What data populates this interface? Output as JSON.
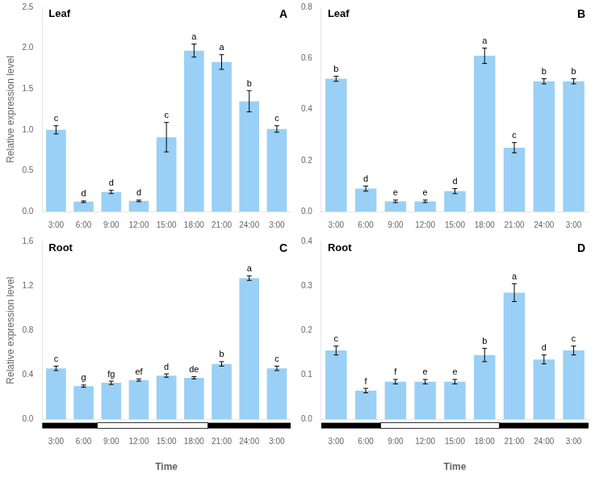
{
  "chart_data": [
    {
      "type": "bar",
      "title": "Leaf",
      "panel_label": "A",
      "categories": [
        "3:00",
        "6:00",
        "9:00",
        "12:00",
        "15:00",
        "18:00",
        "21:00",
        "24:00",
        "3:00"
      ],
      "values": [
        1.0,
        0.12,
        0.24,
        0.13,
        0.91,
        1.97,
        1.83,
        1.35,
        1.01
      ],
      "errors": [
        0.05,
        0.01,
        0.02,
        0.01,
        0.18,
        0.08,
        0.09,
        0.13,
        0.04
      ],
      "annotations": [
        "c",
        "d",
        "d",
        "d",
        "c",
        "a",
        "a",
        "b",
        "c"
      ],
      "ylabel": "Relative expression level",
      "ylim": [
        0,
        2.5
      ],
      "yticks": [
        {
          "value": 0,
          "label": "0.0"
        },
        0.5,
        {
          "value": 1,
          "label": "1.0"
        },
        1.5,
        {
          "value": 2,
          "label": "2.0"
        },
        2.5
      ],
      "grid": false
    },
    {
      "type": "bar",
      "title": "Leaf",
      "panel_label": "B",
      "categories": [
        "3:00",
        "6:00",
        "9:00",
        "12:00",
        "15:00",
        "18:00",
        "21:00",
        "24:00",
        "3:00"
      ],
      "values": [
        0.52,
        0.09,
        0.04,
        0.04,
        0.08,
        0.61,
        0.25,
        0.51,
        0.51
      ],
      "errors": [
        0.01,
        0.01,
        0.005,
        0.005,
        0.01,
        0.03,
        0.02,
        0.01,
        0.01
      ],
      "annotations": [
        "b",
        "d",
        "e",
        "e",
        "d",
        "a",
        "c",
        "b",
        "b"
      ],
      "ylim": [
        0,
        0.8
      ],
      "yticks": [
        {
          "value": 0,
          "label": "0.0"
        },
        0.2,
        0.4,
        0.6,
        0.8
      ],
      "grid": false
    },
    {
      "type": "bar",
      "title": "Root",
      "panel_label": "C",
      "categories": [
        "3:00",
        "6:00",
        "9:00",
        "12:00",
        "15:00",
        "18:00",
        "21:00",
        "24:00",
        "3:00"
      ],
      "values": [
        0.46,
        0.3,
        0.33,
        0.355,
        0.395,
        0.375,
        0.5,
        1.27,
        0.46
      ],
      "errors": [
        0.02,
        0.01,
        0.015,
        0.01,
        0.015,
        0.01,
        0.02,
        0.02,
        0.02
      ],
      "annotations": [
        "c",
        "g",
        "fg",
        "ef",
        "d",
        "de",
        "b",
        "a",
        "c"
      ],
      "ylabel": "Relative expression level",
      "xlabel": "Time",
      "night": [
        true,
        true,
        false,
        false,
        false,
        false,
        true,
        true,
        true
      ],
      "ylim": [
        0,
        1.6
      ],
      "yticks": [
        {
          "value": 0,
          "label": "0.0"
        },
        0.4,
        0.8,
        1.2,
        1.6
      ],
      "grid": false
    },
    {
      "type": "bar",
      "title": "Root",
      "panel_label": "D",
      "categories": [
        "3:00",
        "6:00",
        "9:00",
        "12:00",
        "15:00",
        "18:00",
        "21:00",
        "24:00",
        "3:00"
      ],
      "values": [
        0.155,
        0.065,
        0.085,
        0.085,
        0.085,
        0.145,
        0.285,
        0.135,
        0.155
      ],
      "errors": [
        0.01,
        0.005,
        0.005,
        0.005,
        0.005,
        0.015,
        0.02,
        0.01,
        0.01
      ],
      "annotations": [
        "c",
        "f",
        "f",
        "e",
        "e",
        "b",
        "a",
        "d",
        "c"
      ],
      "xlabel": "Time",
      "night": [
        true,
        true,
        false,
        false,
        false,
        false,
        true,
        true,
        true
      ],
      "ylim": [
        0,
        0.4
      ],
      "yticks": [
        {
          "value": 0,
          "label": "0.0"
        },
        0.1,
        0.2,
        0.3,
        0.4
      ],
      "grid": false
    }
  ]
}
